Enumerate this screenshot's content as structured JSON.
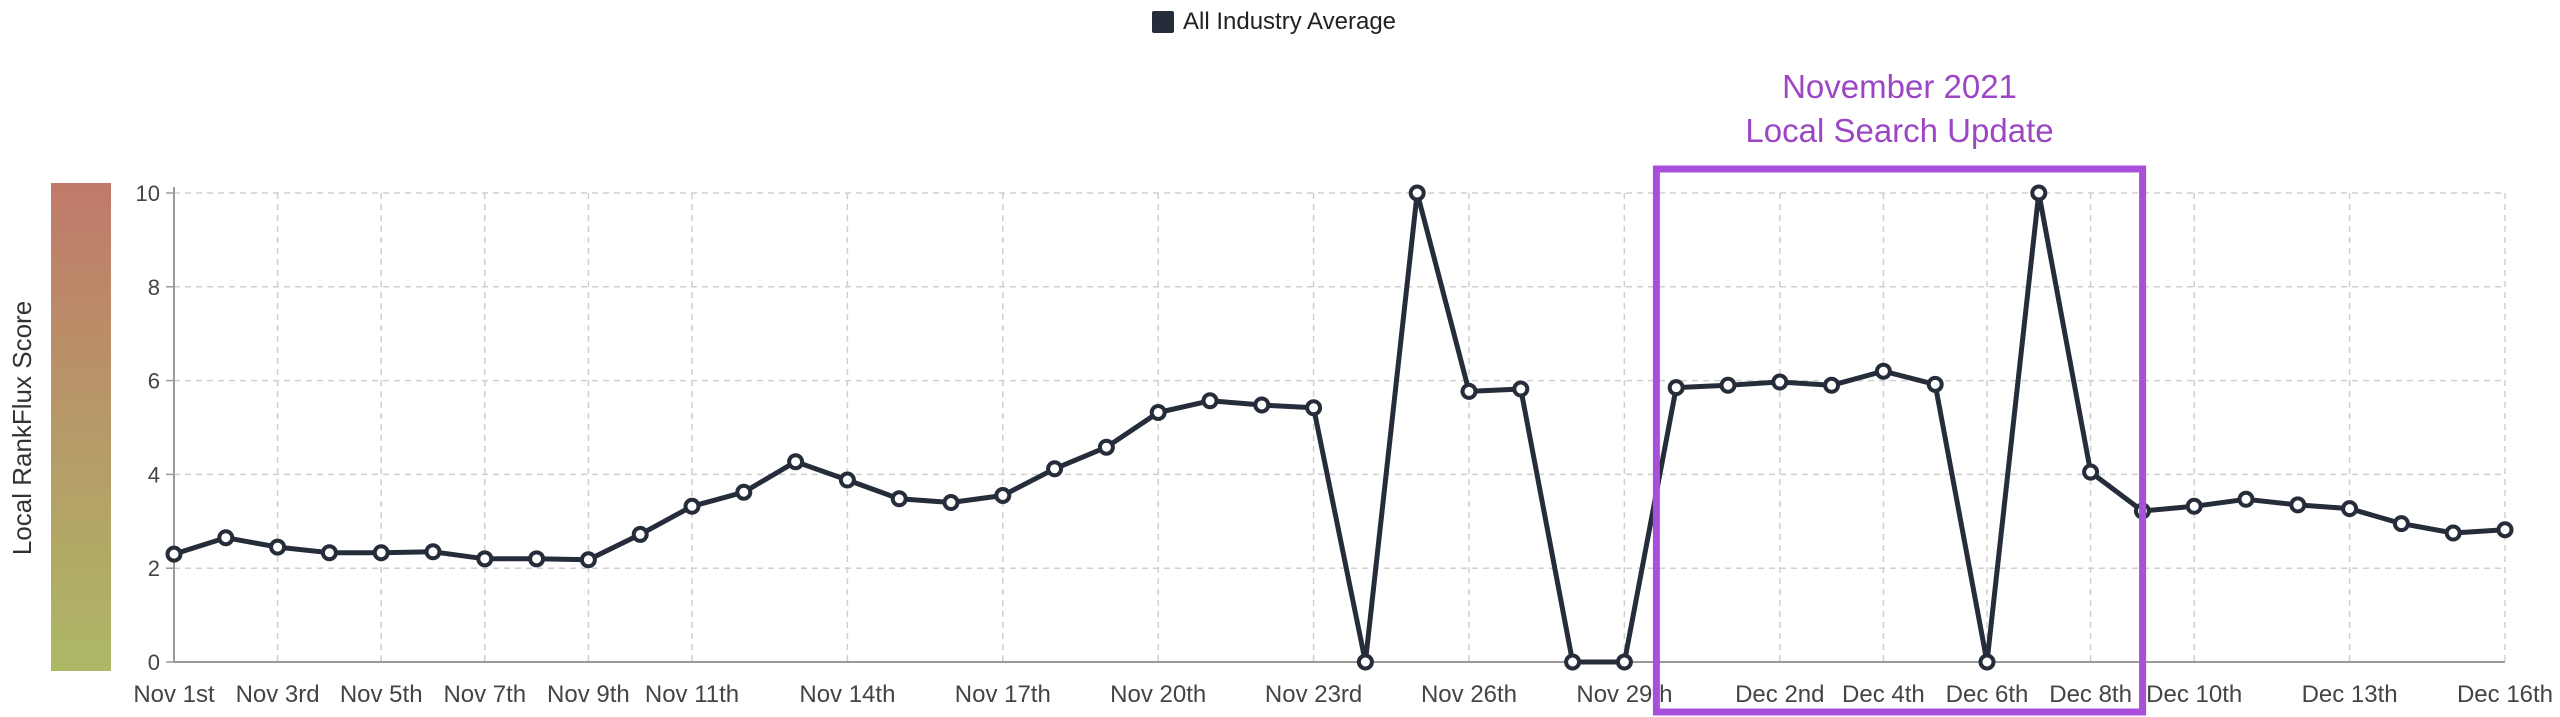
{
  "chart_data": {
    "type": "line",
    "legend": {
      "label": "All Industry Average",
      "color": "#252c3a",
      "position": "top-center"
    },
    "ylabel": "Local RankFlux Score",
    "ylim": [
      0,
      10
    ],
    "yticks": [
      "0",
      "2",
      "4",
      "6",
      "8",
      "10"
    ],
    "grid": true,
    "colorbar": {
      "top_color": "#c07a6a",
      "bottom_color": "#adb865"
    },
    "x": [
      "Nov 1st",
      "Nov 2nd",
      "Nov 3rd",
      "Nov 4th",
      "Nov 5th",
      "Nov 6th",
      "Nov 7th",
      "Nov 8th",
      "Nov 9th",
      "Nov 10th",
      "Nov 11th",
      "Nov 12th",
      "Nov 13th",
      "Nov 14th",
      "Nov 15th",
      "Nov 16th",
      "Nov 17th",
      "Nov 18th",
      "Nov 19th",
      "Nov 20th",
      "Nov 21st",
      "Nov 22nd",
      "Nov 23rd",
      "Nov 24th",
      "Nov 25th",
      "Nov 26th",
      "Nov 27th",
      "Nov 28th",
      "Nov 29th",
      "Nov 30th",
      "Dec 1st",
      "Dec 2nd",
      "Dec 3rd",
      "Dec 4th",
      "Dec 5th",
      "Dec 6th",
      "Dec 7th",
      "Dec 8th",
      "Dec 9th",
      "Dec 10th",
      "Dec 11th",
      "Dec 12th",
      "Dec 13th",
      "Dec 14th",
      "Dec 15th",
      "Dec 16th"
    ],
    "xtick_labels": [
      "Nov 1st",
      "Nov 3rd",
      "Nov 5th",
      "Nov 7th",
      "Nov 9th",
      "Nov 11th",
      "Nov 14th",
      "Nov 17th",
      "Nov 20th",
      "Nov 23rd",
      "Nov 26th",
      "Nov 29th",
      "Dec 2nd",
      "Dec 4th",
      "Dec 6th",
      "Dec 8th",
      "Dec 10th",
      "Dec 13th",
      "Dec 16th"
    ],
    "series": [
      {
        "name": "All Industry Average",
        "color": "#252c3a",
        "values": [
          2.3,
          2.65,
          2.45,
          2.33,
          2.33,
          2.35,
          2.2,
          2.2,
          2.18,
          2.72,
          3.32,
          3.62,
          4.27,
          3.88,
          3.48,
          3.4,
          3.55,
          4.12,
          4.58,
          5.32,
          5.57,
          5.48,
          5.42,
          0.0,
          10.0,
          5.77,
          5.82,
          0.0,
          0.0,
          5.85,
          5.9,
          5.97,
          5.9,
          6.2,
          5.92,
          0.0,
          10.0,
          4.05,
          3.22,
          3.32,
          3.47,
          3.35,
          3.27,
          2.95,
          2.75,
          2.82
        ]
      }
    ],
    "annotation": {
      "line1": "November 2021",
      "line2": "Local Search Update",
      "color": "#9d46c4",
      "box_color": "#a84fdc",
      "x_start": "Nov 29th",
      "x_end": "Dec 8th"
    }
  }
}
